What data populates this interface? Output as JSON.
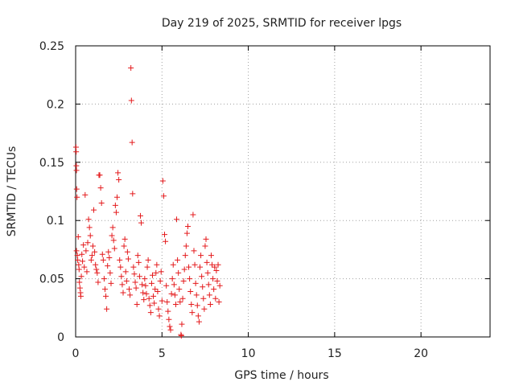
{
  "chart_data": {
    "type": "scatter",
    "title": "Day 219 of 2025, SRMTID for receiver lpgs",
    "xlabel": "GPS time / hours",
    "ylabel": "SRMTID / TECUs",
    "xlim": [
      0,
      24
    ],
    "ylim": [
      0,
      0.25
    ],
    "xticks": [
      0,
      5,
      10,
      15,
      20
    ],
    "xtick_labels": [
      "0",
      "5",
      "10",
      "15",
      "20"
    ],
    "yticks": [
      0,
      0.05,
      0.1,
      0.15,
      0.2,
      0.25
    ],
    "ytick_labels": [
      "0",
      "0.05",
      "0.1",
      "0.15",
      "0.2",
      "0.25"
    ],
    "grid": true,
    "marker": "+",
    "series": [
      {
        "name": "SRMTID",
        "color": "#e41a1c",
        "points": [
          [
            0.02,
            0.163
          ],
          [
            0.03,
            0.159
          ],
          [
            0.04,
            0.147
          ],
          [
            0.05,
            0.143
          ],
          [
            0.06,
            0.127
          ],
          [
            0.08,
            0.12
          ],
          [
            0.05,
            0.074
          ],
          [
            0.1,
            0.07
          ],
          [
            0.12,
            0.066
          ],
          [
            0.15,
            0.086
          ],
          [
            0.18,
            0.062
          ],
          [
            0.2,
            0.058
          ],
          [
            0.22,
            0.047
          ],
          [
            0.25,
            0.042
          ],
          [
            0.28,
            0.038
          ],
          [
            0.3,
            0.035
          ],
          [
            0.33,
            0.052
          ],
          [
            0.36,
            0.071
          ],
          [
            0.4,
            0.065
          ],
          [
            0.45,
            0.079
          ],
          [
            0.5,
            0.06
          ],
          [
            0.55,
            0.122
          ],
          [
            0.6,
            0.074
          ],
          [
            0.65,
            0.056
          ],
          [
            0.7,
            0.081
          ],
          [
            0.75,
            0.101
          ],
          [
            0.8,
            0.094
          ],
          [
            0.85,
            0.087
          ],
          [
            0.9,
            0.066
          ],
          [
            0.95,
            0.07
          ],
          [
            1.0,
            0.078
          ],
          [
            1.05,
            0.109
          ],
          [
            1.1,
            0.073
          ],
          [
            1.15,
            0.062
          ],
          [
            1.2,
            0.058
          ],
          [
            1.25,
            0.055
          ],
          [
            1.3,
            0.047
          ],
          [
            1.35,
            0.139
          ],
          [
            1.4,
            0.139
          ],
          [
            1.45,
            0.128
          ],
          [
            1.5,
            0.115
          ],
          [
            1.55,
            0.071
          ],
          [
            1.6,
            0.066
          ],
          [
            1.65,
            0.05
          ],
          [
            1.7,
            0.041
          ],
          [
            1.75,
            0.035
          ],
          [
            1.8,
            0.024
          ],
          [
            1.85,
            0.061
          ],
          [
            1.9,
            0.073
          ],
          [
            1.95,
            0.068
          ],
          [
            2.0,
            0.055
          ],
          [
            2.05,
            0.046
          ],
          [
            2.1,
            0.087
          ],
          [
            2.15,
            0.094
          ],
          [
            2.2,
            0.083
          ],
          [
            2.25,
            0.076
          ],
          [
            2.3,
            0.113
          ],
          [
            2.35,
            0.107
          ],
          [
            2.4,
            0.12
          ],
          [
            2.45,
            0.141
          ],
          [
            2.5,
            0.135
          ],
          [
            2.55,
            0.066
          ],
          [
            2.6,
            0.06
          ],
          [
            2.65,
            0.052
          ],
          [
            2.7,
            0.045
          ],
          [
            2.75,
            0.038
          ],
          [
            2.8,
            0.078
          ],
          [
            2.85,
            0.084
          ],
          [
            2.9,
            0.056
          ],
          [
            2.95,
            0.048
          ],
          [
            3.0,
            0.073
          ],
          [
            3.05,
            0.067
          ],
          [
            3.1,
            0.041
          ],
          [
            3.15,
            0.036
          ],
          [
            3.2,
            0.231
          ],
          [
            3.23,
            0.203
          ],
          [
            3.27,
            0.167
          ],
          [
            3.3,
            0.123
          ],
          [
            3.35,
            0.06
          ],
          [
            3.4,
            0.054
          ],
          [
            3.45,
            0.047
          ],
          [
            3.5,
            0.042
          ],
          [
            3.55,
            0.028
          ],
          [
            3.6,
            0.07
          ],
          [
            3.65,
            0.064
          ],
          [
            3.7,
            0.052
          ],
          [
            3.75,
            0.104
          ],
          [
            3.8,
            0.098
          ],
          [
            3.85,
            0.045
          ],
          [
            3.9,
            0.038
          ],
          [
            3.95,
            0.032
          ],
          [
            4.0,
            0.05
          ],
          [
            4.05,
            0.044
          ],
          [
            4.1,
            0.037
          ],
          [
            4.15,
            0.06
          ],
          [
            4.2,
            0.066
          ],
          [
            4.25,
            0.033
          ],
          [
            4.3,
            0.027
          ],
          [
            4.35,
            0.021
          ],
          [
            4.4,
            0.046
          ],
          [
            4.45,
            0.053
          ],
          [
            4.5,
            0.035
          ],
          [
            4.55,
            0.029
          ],
          [
            4.6,
            0.041
          ],
          [
            4.65,
            0.055
          ],
          [
            4.7,
            0.062
          ],
          [
            4.75,
            0.039
          ],
          [
            4.8,
            0.024
          ],
          [
            4.85,
            0.018
          ],
          [
            4.9,
            0.048
          ],
          [
            4.95,
            0.056
          ],
          [
            5.0,
            0.031
          ],
          [
            5.05,
            0.134
          ],
          [
            5.1,
            0.121
          ],
          [
            5.15,
            0.088
          ],
          [
            5.2,
            0.082
          ],
          [
            5.25,
            0.044
          ],
          [
            5.3,
            0.03
          ],
          [
            5.35,
            0.022
          ],
          [
            5.4,
            0.015
          ],
          [
            5.45,
            0.009
          ],
          [
            5.5,
            0.006
          ],
          [
            5.55,
            0.037
          ],
          [
            5.6,
            0.05
          ],
          [
            5.65,
            0.062
          ],
          [
            5.7,
            0.045
          ],
          [
            5.75,
            0.036
          ],
          [
            5.8,
            0.028
          ],
          [
            5.85,
            0.101
          ],
          [
            5.9,
            0.066
          ],
          [
            5.95,
            0.055
          ],
          [
            6.0,
            0.041
          ],
          [
            6.05,
            0.03
          ],
          [
            6.1,
            0.002
          ],
          [
            6.12,
            0.001
          ],
          [
            6.15,
            0.011
          ],
          [
            6.2,
            0.033
          ],
          [
            6.25,
            0.048
          ],
          [
            6.3,
            0.058
          ],
          [
            6.35,
            0.07
          ],
          [
            6.4,
            0.078
          ],
          [
            6.45,
            0.089
          ],
          [
            6.5,
            0.095
          ],
          [
            6.55,
            0.06
          ],
          [
            6.6,
            0.05
          ],
          [
            6.65,
            0.039
          ],
          [
            6.7,
            0.028
          ],
          [
            6.75,
            0.021
          ],
          [
            6.8,
            0.105
          ],
          [
            6.85,
            0.074
          ],
          [
            6.9,
            0.062
          ],
          [
            6.95,
            0.046
          ],
          [
            7.0,
            0.036
          ],
          [
            7.05,
            0.027
          ],
          [
            7.1,
            0.018
          ],
          [
            7.15,
            0.013
          ],
          [
            7.2,
            0.06
          ],
          [
            7.25,
            0.07
          ],
          [
            7.3,
            0.052
          ],
          [
            7.35,
            0.043
          ],
          [
            7.4,
            0.033
          ],
          [
            7.45,
            0.024
          ],
          [
            7.5,
            0.078
          ],
          [
            7.55,
            0.084
          ],
          [
            7.6,
            0.064
          ],
          [
            7.65,
            0.055
          ],
          [
            7.7,
            0.045
          ],
          [
            7.75,
            0.036
          ],
          [
            7.8,
            0.028
          ],
          [
            7.85,
            0.07
          ],
          [
            7.9,
            0.062
          ],
          [
            7.95,
            0.05
          ],
          [
            8.0,
            0.041
          ],
          [
            8.05,
            0.06
          ],
          [
            8.1,
            0.033
          ],
          [
            8.15,
            0.057
          ],
          [
            8.2,
            0.048
          ],
          [
            8.25,
            0.062
          ],
          [
            8.3,
            0.03
          ],
          [
            8.35,
            0.044
          ]
        ]
      }
    ]
  }
}
